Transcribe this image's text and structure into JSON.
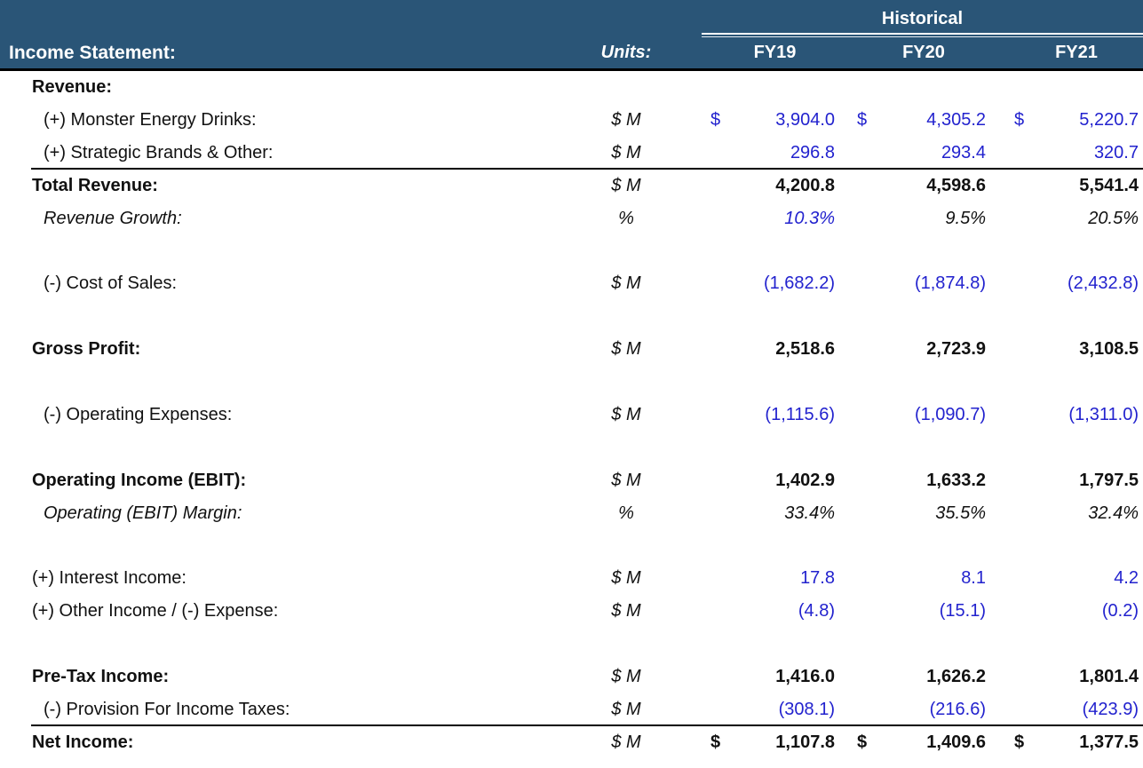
{
  "header": {
    "group_label": "Historical",
    "title": "Income Statement:",
    "units_label": "Units:",
    "columns": [
      "FY19",
      "FY20",
      "FY21"
    ],
    "currency_symbol": "$"
  },
  "colors": {
    "header_background": "#2A5577",
    "header_text": "#FFFFFF",
    "input_value_blue": "#2222CE",
    "formula_value_black": "#111111",
    "rule_line": "#000000"
  },
  "rows": [
    {
      "label": "Revenue:",
      "indent": 1,
      "bold": true,
      "units": "",
      "values": [
        "",
        "",
        ""
      ]
    },
    {
      "label": "(+) Monster Energy Drinks:",
      "indent": 2,
      "units": "$ M",
      "values": [
        "3,904.0",
        "4,305.2",
        "5,220.7"
      ],
      "color": "blue",
      "dollar": true
    },
    {
      "label": "(+) Strategic Brands & Other:",
      "indent": 2,
      "units": "$ M",
      "values": [
        "296.8",
        "293.4",
        "320.7"
      ],
      "color": "blue",
      "rule_below": true
    },
    {
      "label": "Total Revenue:",
      "indent": 1,
      "bold": true,
      "units": "$ M",
      "values": [
        "4,200.8",
        "4,598.6",
        "5,541.4"
      ],
      "color": "black"
    },
    {
      "label": "Revenue Growth:",
      "indent": 2,
      "italic": true,
      "units": "%",
      "values": [
        "10.3%",
        "9.5%",
        "20.5%"
      ],
      "value_colors": [
        "blue",
        "black",
        "black"
      ]
    },
    {
      "label": "",
      "units": "",
      "values": [
        "",
        "",
        ""
      ]
    },
    {
      "label": "(-) Cost of Sales:",
      "indent": 2,
      "units": "$ M",
      "values": [
        "(1,682.2)",
        "(1,874.8)",
        "(2,432.8)"
      ],
      "color": "blue"
    },
    {
      "label": "",
      "units": "",
      "values": [
        "",
        "",
        ""
      ]
    },
    {
      "label": "Gross Profit:",
      "indent": 1,
      "bold": true,
      "units": "$ M",
      "values": [
        "2,518.6",
        "2,723.9",
        "3,108.5"
      ],
      "color": "black"
    },
    {
      "label": "",
      "units": "",
      "values": [
        "",
        "",
        ""
      ]
    },
    {
      "label": "(-) Operating Expenses:",
      "indent": 2,
      "units": "$ M",
      "values": [
        "(1,115.6)",
        "(1,090.7)",
        "(1,311.0)"
      ],
      "color": "blue"
    },
    {
      "label": "",
      "units": "",
      "values": [
        "",
        "",
        ""
      ]
    },
    {
      "label": "Operating Income (EBIT):",
      "indent": 1,
      "bold": true,
      "units": "$ M",
      "values": [
        "1,402.9",
        "1,633.2",
        "1,797.5"
      ],
      "color": "black"
    },
    {
      "label": "Operating (EBIT) Margin:",
      "indent": 2,
      "italic": true,
      "units": "%",
      "values": [
        "33.4%",
        "35.5%",
        "32.4%"
      ],
      "value_colors": [
        "black",
        "black",
        "black"
      ]
    },
    {
      "label": "",
      "units": "",
      "values": [
        "",
        "",
        ""
      ]
    },
    {
      "label": "(+) Interest Income:",
      "indent": 1,
      "units": "$ M",
      "values": [
        "17.8",
        "8.1",
        "4.2"
      ],
      "color": "blue"
    },
    {
      "label": "(+) Other Income / (-) Expense:",
      "indent": 1,
      "units": "$ M",
      "values": [
        "(4.8)",
        "(15.1)",
        "(0.2)"
      ],
      "color": "blue"
    },
    {
      "label": "",
      "units": "",
      "values": [
        "",
        "",
        ""
      ]
    },
    {
      "label": "Pre-Tax Income:",
      "indent": 1,
      "bold": true,
      "units": "$ M",
      "values": [
        "1,416.0",
        "1,626.2",
        "1,801.4"
      ],
      "color": "black"
    },
    {
      "label": "(-) Provision For Income Taxes:",
      "indent": 2,
      "units": "$ M",
      "values": [
        "(308.1)",
        "(216.6)",
        "(423.9)"
      ],
      "color": "blue",
      "rule_below": true
    },
    {
      "label": "Net Income:",
      "indent": 1,
      "bold": true,
      "units": "$ M",
      "values": [
        "1,107.8",
        "1,409.6",
        "1,377.5"
      ],
      "color": "black",
      "dollar": true
    }
  ]
}
